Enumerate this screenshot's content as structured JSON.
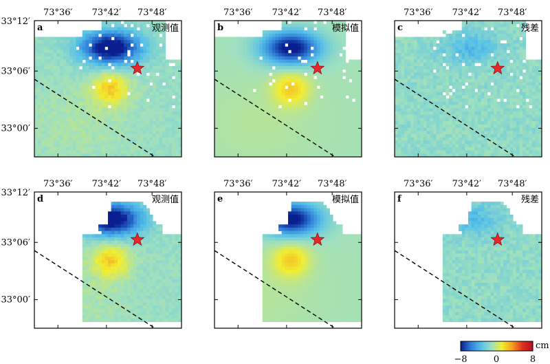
{
  "chart_data": {
    "type": "heatmap",
    "x_ticks": [
      "73°36′",
      "73°42′",
      "73°48′"
    ],
    "y_ticks": [
      "33°12′",
      "33°06′",
      "33°00′"
    ],
    "panels": [
      {
        "letter": "a",
        "title": "观测值",
        "kind": "obs",
        "coverage": "swath"
      },
      {
        "letter": "b",
        "title": "模拟值",
        "kind": "model",
        "coverage": "swath"
      },
      {
        "letter": "c",
        "title": "残差",
        "kind": "residual",
        "coverage": "swath"
      },
      {
        "letter": "d",
        "title": "观测值",
        "kind": "obs",
        "coverage": "subset"
      },
      {
        "letter": "e",
        "title": "模拟值",
        "kind": "model",
        "coverage": "subset"
      },
      {
        "letter": "f",
        "title": "残差",
        "kind": "residual",
        "coverage": "subset"
      }
    ],
    "colorbar": {
      "unit": "cm",
      "min_label": "−8",
      "mid_label": "0",
      "max_label": "8",
      "range": [
        -8,
        8
      ],
      "colors": [
        "#0a1f8f",
        "#2f7fd8",
        "#56c0e8",
        "#9fe0c0",
        "#f2ee30",
        "#f5a020",
        "#e03020",
        "#b01020"
      ]
    },
    "epicenter": {
      "marker": "star",
      "color": "#e8262b"
    },
    "fault_trace": {
      "style": "dashed",
      "color": "#000000"
    }
  }
}
